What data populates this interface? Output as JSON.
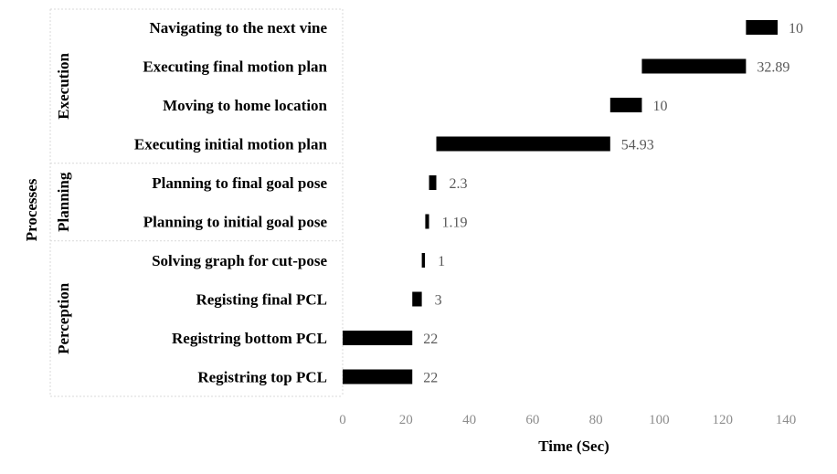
{
  "chart_data": {
    "type": "bar",
    "orientation": "horizontal",
    "stacked_floating": true,
    "title": "",
    "xlabel": "Time (Sec)",
    "ylabel": "Processes",
    "xlim": [
      0,
      140
    ],
    "xticks": [
      0,
      20,
      40,
      60,
      80,
      100,
      120,
      140
    ],
    "xtick_labels": [
      "0",
      "20",
      "40",
      "60",
      "80",
      "100",
      "120",
      "140"
    ],
    "grid": false,
    "legend": "none",
    "bar_color": "#000000",
    "groups": [
      {
        "name": "Perception",
        "items": [
          "Registring top PCL",
          "Registring bottom PCL",
          "Registing final PCL",
          "Solving graph for cut-pose"
        ]
      },
      {
        "name": "Planning",
        "items": [
          "Planning to initial goal pose",
          "Planning to final goal pose"
        ]
      },
      {
        "name": "Execution",
        "items": [
          "Executing initial motion plan",
          "Moving to home location",
          "Executing final motion plan",
          "Navigating to the next vine"
        ]
      }
    ],
    "categories": [
      "Navigating to the next vine",
      "Executing final motion plan",
      "Moving to home location",
      "Executing initial motion plan",
      "Planning to final goal pose",
      "Planning to initial goal pose",
      "Solving graph for cut-pose",
      "Registing final PCL",
      "Registring bottom PCL",
      "Registring top PCL"
    ],
    "start": [
      127.41,
      94.52,
      84.52,
      29.59,
      27.29,
      26.1,
      25,
      22,
      0,
      0
    ],
    "values": [
      10,
      32.89,
      10,
      54.93,
      2.3,
      1.19,
      1,
      3,
      22,
      22
    ],
    "value_labels": [
      "10",
      "32.89",
      "10",
      "54.93",
      "2.3",
      "1.19",
      "1",
      "3",
      "22",
      "22"
    ]
  }
}
